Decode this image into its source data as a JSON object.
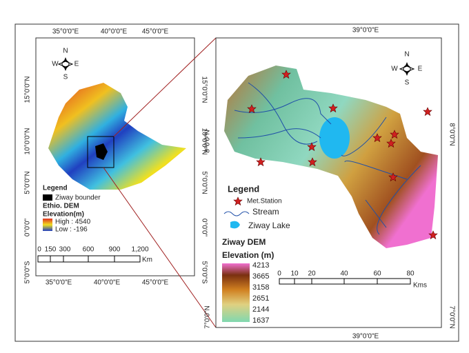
{
  "overview_map": {
    "top_labels": [
      "35°0'0\"E",
      "40°0'0\"E",
      "45°0'0\"E"
    ],
    "bottom_labels": [
      "35°0'0\"E",
      "40°0'0\"E",
      "45°0'0\"E"
    ],
    "left_labels": [
      "15°0'0\"N",
      "10°0'0\"N",
      "5°0'0\"N",
      "0°0'0\"",
      "5°0'0\"S"
    ],
    "right_labels": [
      "15°0'0\"N",
      "10°0'0\"N",
      "5°0'0\"N",
      "0°0'0\"",
      "5°0'0\"S"
    ],
    "compass": {
      "n": "N",
      "s": "S",
      "w": "W",
      "e": "E"
    },
    "legend": {
      "title": "Legend",
      "boundary": "Ziway bounder",
      "layer": "Ethio. DEM",
      "field": "Elevation(m)",
      "high": "High : 4540",
      "low": "Low : -196"
    },
    "scale": {
      "ticks": [
        "0",
        "150",
        "300",
        "600",
        "900",
        "1,200"
      ],
      "unit": "Km"
    }
  },
  "detail_map": {
    "top_label": "39°0'0\"E",
    "bottom_label": "39°0'0\"E",
    "left_labels": [
      "8°0'0\"N",
      "7°0'0\"N"
    ],
    "right_labels": [
      "8°0'0\"N",
      "7°0'0\"N"
    ],
    "compass": {
      "n": "N",
      "s": "S",
      "w": "W",
      "e": "E"
    },
    "legend": {
      "title": "Legend",
      "station": "Met.Station",
      "stream": "Stream",
      "lake": "Ziway Lake",
      "layer": "Ziway DEM",
      "field": "Elevation  (m)",
      "classes": [
        "4213",
        "3665",
        "3158",
        "2651",
        "2144",
        "1637"
      ]
    },
    "scale": {
      "ticks": [
        "0",
        "10",
        "20",
        "40",
        "60",
        "80"
      ],
      "unit": "Kms"
    }
  }
}
